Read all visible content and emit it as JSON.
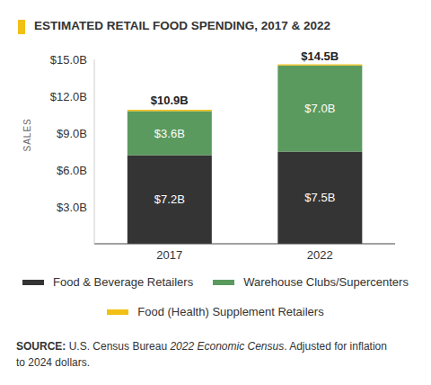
{
  "chart_data": {
    "type": "bar",
    "title": "ESTIMATED RETAIL FOOD SPENDING, 2017 & 2022",
    "y_label": "SALES",
    "categories": [
      "2017",
      "2022"
    ],
    "stacked": true,
    "grid": false,
    "ylim": [
      0,
      15
    ],
    "yticks": [
      {
        "value": 3,
        "label": "$3.0B"
      },
      {
        "value": 6,
        "label": "$6.0B"
      },
      {
        "value": 9,
        "label": "$9.0B"
      },
      {
        "value": 12,
        "label": "$12.0B"
      },
      {
        "value": 15,
        "label": "$15.0B"
      }
    ],
    "series": [
      {
        "name": "Food & Beverage Retailers",
        "color": "#343434",
        "values": [
          7.2,
          7.5
        ],
        "data_labels": true,
        "value_labels": [
          "$7.2B",
          "$7.5B"
        ]
      },
      {
        "name": "Warehouse Clubs/Supercenters",
        "color": "#5b9a5e",
        "values": [
          3.6,
          7.0
        ],
        "data_labels": true,
        "value_labels": [
          "$3.6B",
          "$7.0B"
        ]
      },
      {
        "name": "Food (Health) Supplement Retailers",
        "color": "#f2c014",
        "values": [
          0.1,
          0.1
        ],
        "data_labels": false
      }
    ],
    "totals": [
      10.9,
      14.5
    ],
    "total_labels": [
      "$10.9B",
      "$14.5B"
    ],
    "source": [
      "SOURCE:",
      "U.S. Census Bureau",
      "2022 Economic Census",
      ". Adjusted for inflation to 2024 dollars."
    ]
  }
}
